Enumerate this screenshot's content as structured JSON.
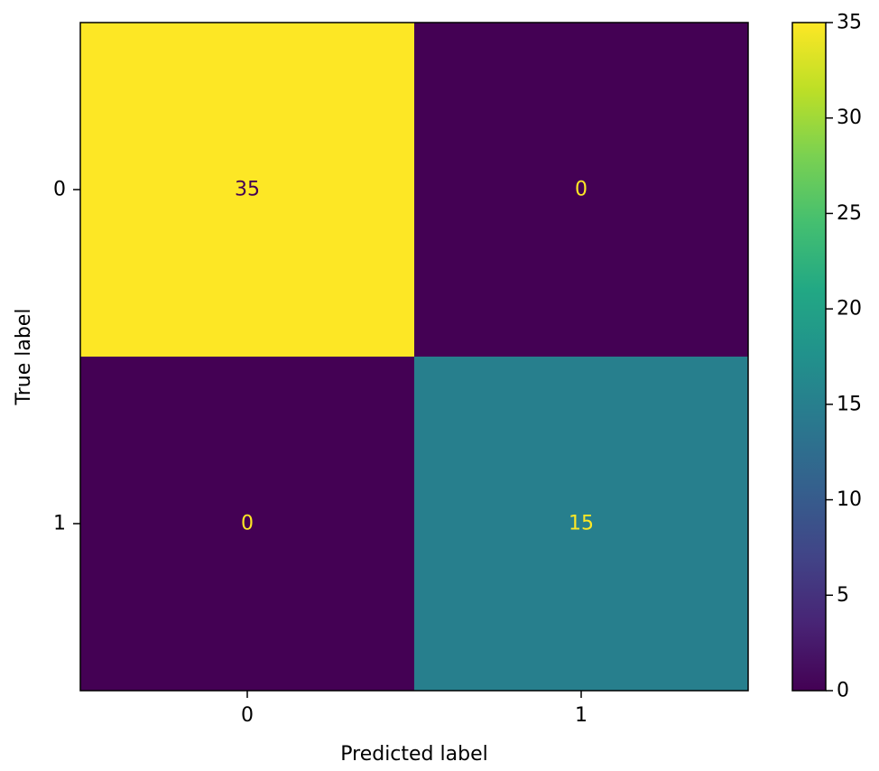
{
  "chart_data": {
    "type": "heatmap",
    "title": "",
    "xlabel": "Predicted label",
    "ylabel": "True label",
    "x_categories": [
      "0",
      "1"
    ],
    "y_categories": [
      "0",
      "1"
    ],
    "matrix": [
      [
        35,
        0
      ],
      [
        0,
        15
      ]
    ],
    "colormap": "viridis",
    "colorbar": {
      "min": 0,
      "max": 35,
      "ticks": [
        0,
        5,
        10,
        15,
        20,
        25,
        30,
        35
      ]
    },
    "annotation_colors": {
      "on_light": "#440154",
      "on_dark": "#fde725"
    }
  }
}
